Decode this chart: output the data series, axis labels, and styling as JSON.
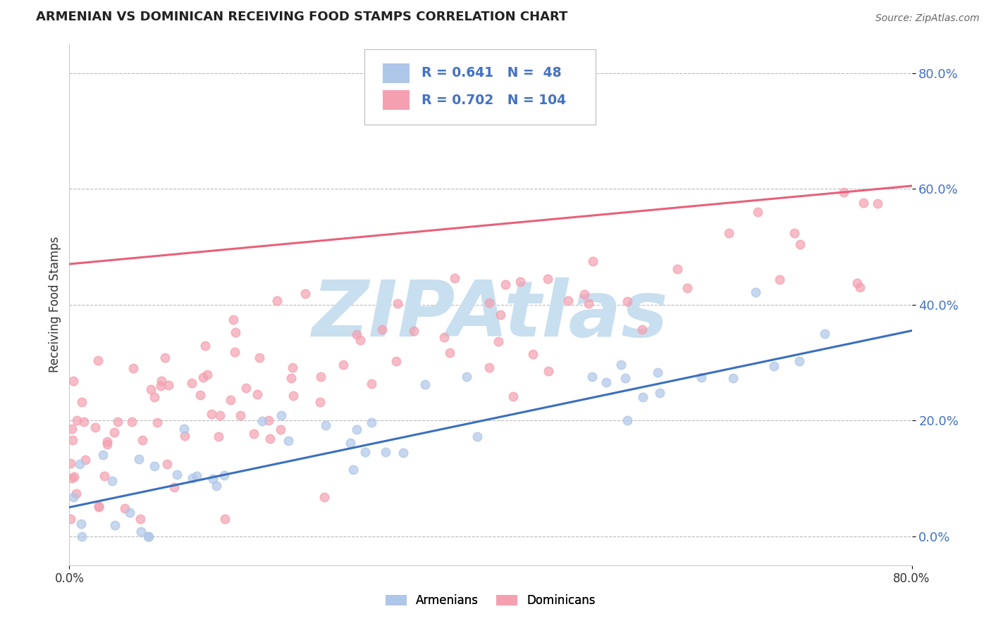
{
  "title": "ARMENIAN VS DOMINICAN RECEIVING FOOD STAMPS CORRELATION CHART",
  "source": "Source: ZipAtlas.com",
  "ylabel": "Receiving Food Stamps",
  "watermark": "ZIPAtlas",
  "armenian": {
    "R": 0.641,
    "N": 48,
    "scatter_color": "#aec6e8",
    "line_color": "#3a6fbf"
  },
  "dominican": {
    "R": 0.702,
    "N": 104,
    "scatter_color": "#f4a0b0",
    "line_color": "#e8607a"
  },
  "xlim": [
    0.0,
    0.8
  ],
  "ylim": [
    -0.05,
    0.85
  ],
  "yticks": [
    0.0,
    0.2,
    0.4,
    0.6,
    0.8
  ],
  "ytick_labels": [
    "0.0%",
    "20.0%",
    "40.0%",
    "60.0%",
    "80.0%"
  ],
  "background_color": "#ffffff",
  "grid_color": "#bbbbbb",
  "title_color": "#222222",
  "source_color": "#666666",
  "tick_color": "#4472c4",
  "watermark_color": "#c8dff0"
}
